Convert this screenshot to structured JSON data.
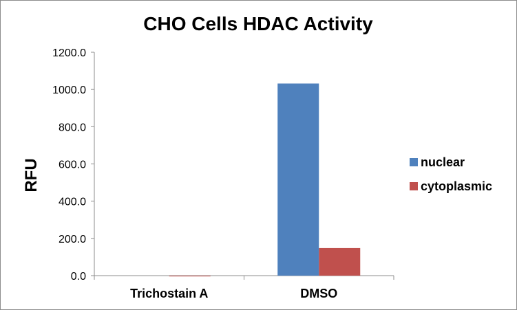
{
  "chart_data": {
    "type": "bar",
    "title": "CHO Cells HDAC Activity",
    "xlabel": "",
    "ylabel": "RFU",
    "ylim": [
      0,
      1200
    ],
    "yticks": [
      "0.0",
      "200.0",
      "400.0",
      "600.0",
      "800.0",
      "1000.0",
      "1200.0"
    ],
    "categories": [
      "Trichostain A",
      "DMSO"
    ],
    "series": [
      {
        "name": "nuclear",
        "color": "#4F81BD",
        "values": [
          0,
          1032
        ]
      },
      {
        "name": "cytoplasmic",
        "color": "#C0504D",
        "values": [
          -4,
          148
        ]
      }
    ],
    "grid": false,
    "legend": "right"
  }
}
